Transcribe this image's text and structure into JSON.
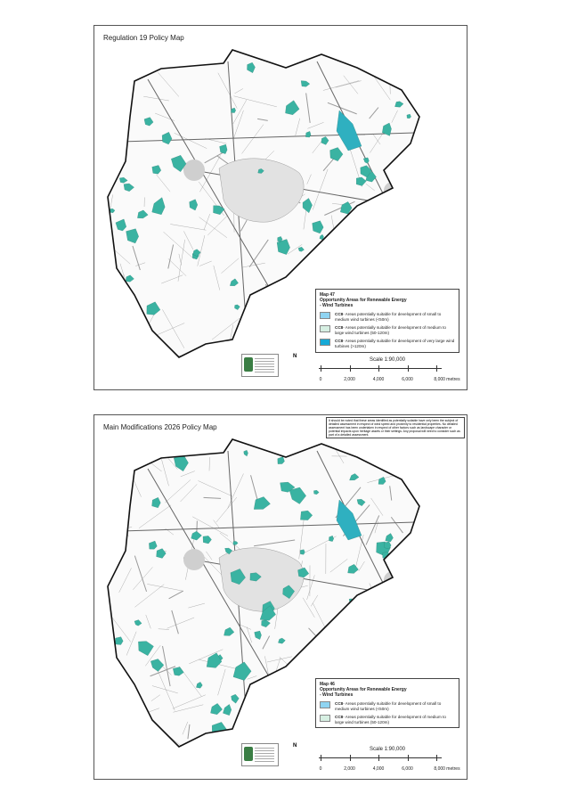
{
  "maps": [
    {
      "title": "Regulation 19 Policy Map",
      "legend": {
        "map_number": "Map 47",
        "heading": "Opportunity Areas for Renewable Energy",
        "subheading": "- Wind Turbines",
        "items": [
          {
            "code": "CC8",
            "text": "- Areas potentially suitable for development of small to medium wind turbines (<50m)",
            "color": "#8fd4f2"
          },
          {
            "code": "CC8",
            "text": "- Areas potentially suitable for development of medium to large wind turbines (50-120m)",
            "color": "#d6efe2"
          },
          {
            "code": "CC8",
            "text": "- Areas potentially suitable for development of very large wind turbines (>120m)",
            "color": "#16a9d6"
          }
        ]
      },
      "scale": {
        "label": "Scale 1:90,000",
        "ticks": [
          "0",
          "2,000",
          "4,000",
          "6,000",
          "8,000 metres"
        ]
      },
      "north_label": "N"
    },
    {
      "title": "Main Modifications 2026 Policy Map",
      "note": "It should be noted that these areas identified as potentially suitable have only been the subject of detailed assessment in respect of wind speed and proximity to residential properties. No detailed assessment has been undertaken in respect of other factors such as landscape character or potential impacts upon heritage assets or their settings. Any proposal will need to consider such as part of a detailed assessment.",
      "legend": {
        "map_number": "Map 46",
        "heading": "Opportunity Areas for Renewable Energy",
        "subheading": "- Wind Turbines",
        "items": [
          {
            "code": "CC8",
            "text": "- Areas potentially suitable for development of small to medium wind turbines (<50m)",
            "color": "#8fd4f2"
          },
          {
            "code": "CC8",
            "text": "- Areas potentially suitable for development of medium to large wind turbines (50-120m)",
            "color": "#d6efe2"
          }
        ]
      },
      "scale": {
        "label": "Scale 1:90,000",
        "ticks": [
          "0",
          "2,000",
          "4,000",
          "6,000",
          "8,000 metres"
        ]
      },
      "north_label": "N"
    }
  ]
}
